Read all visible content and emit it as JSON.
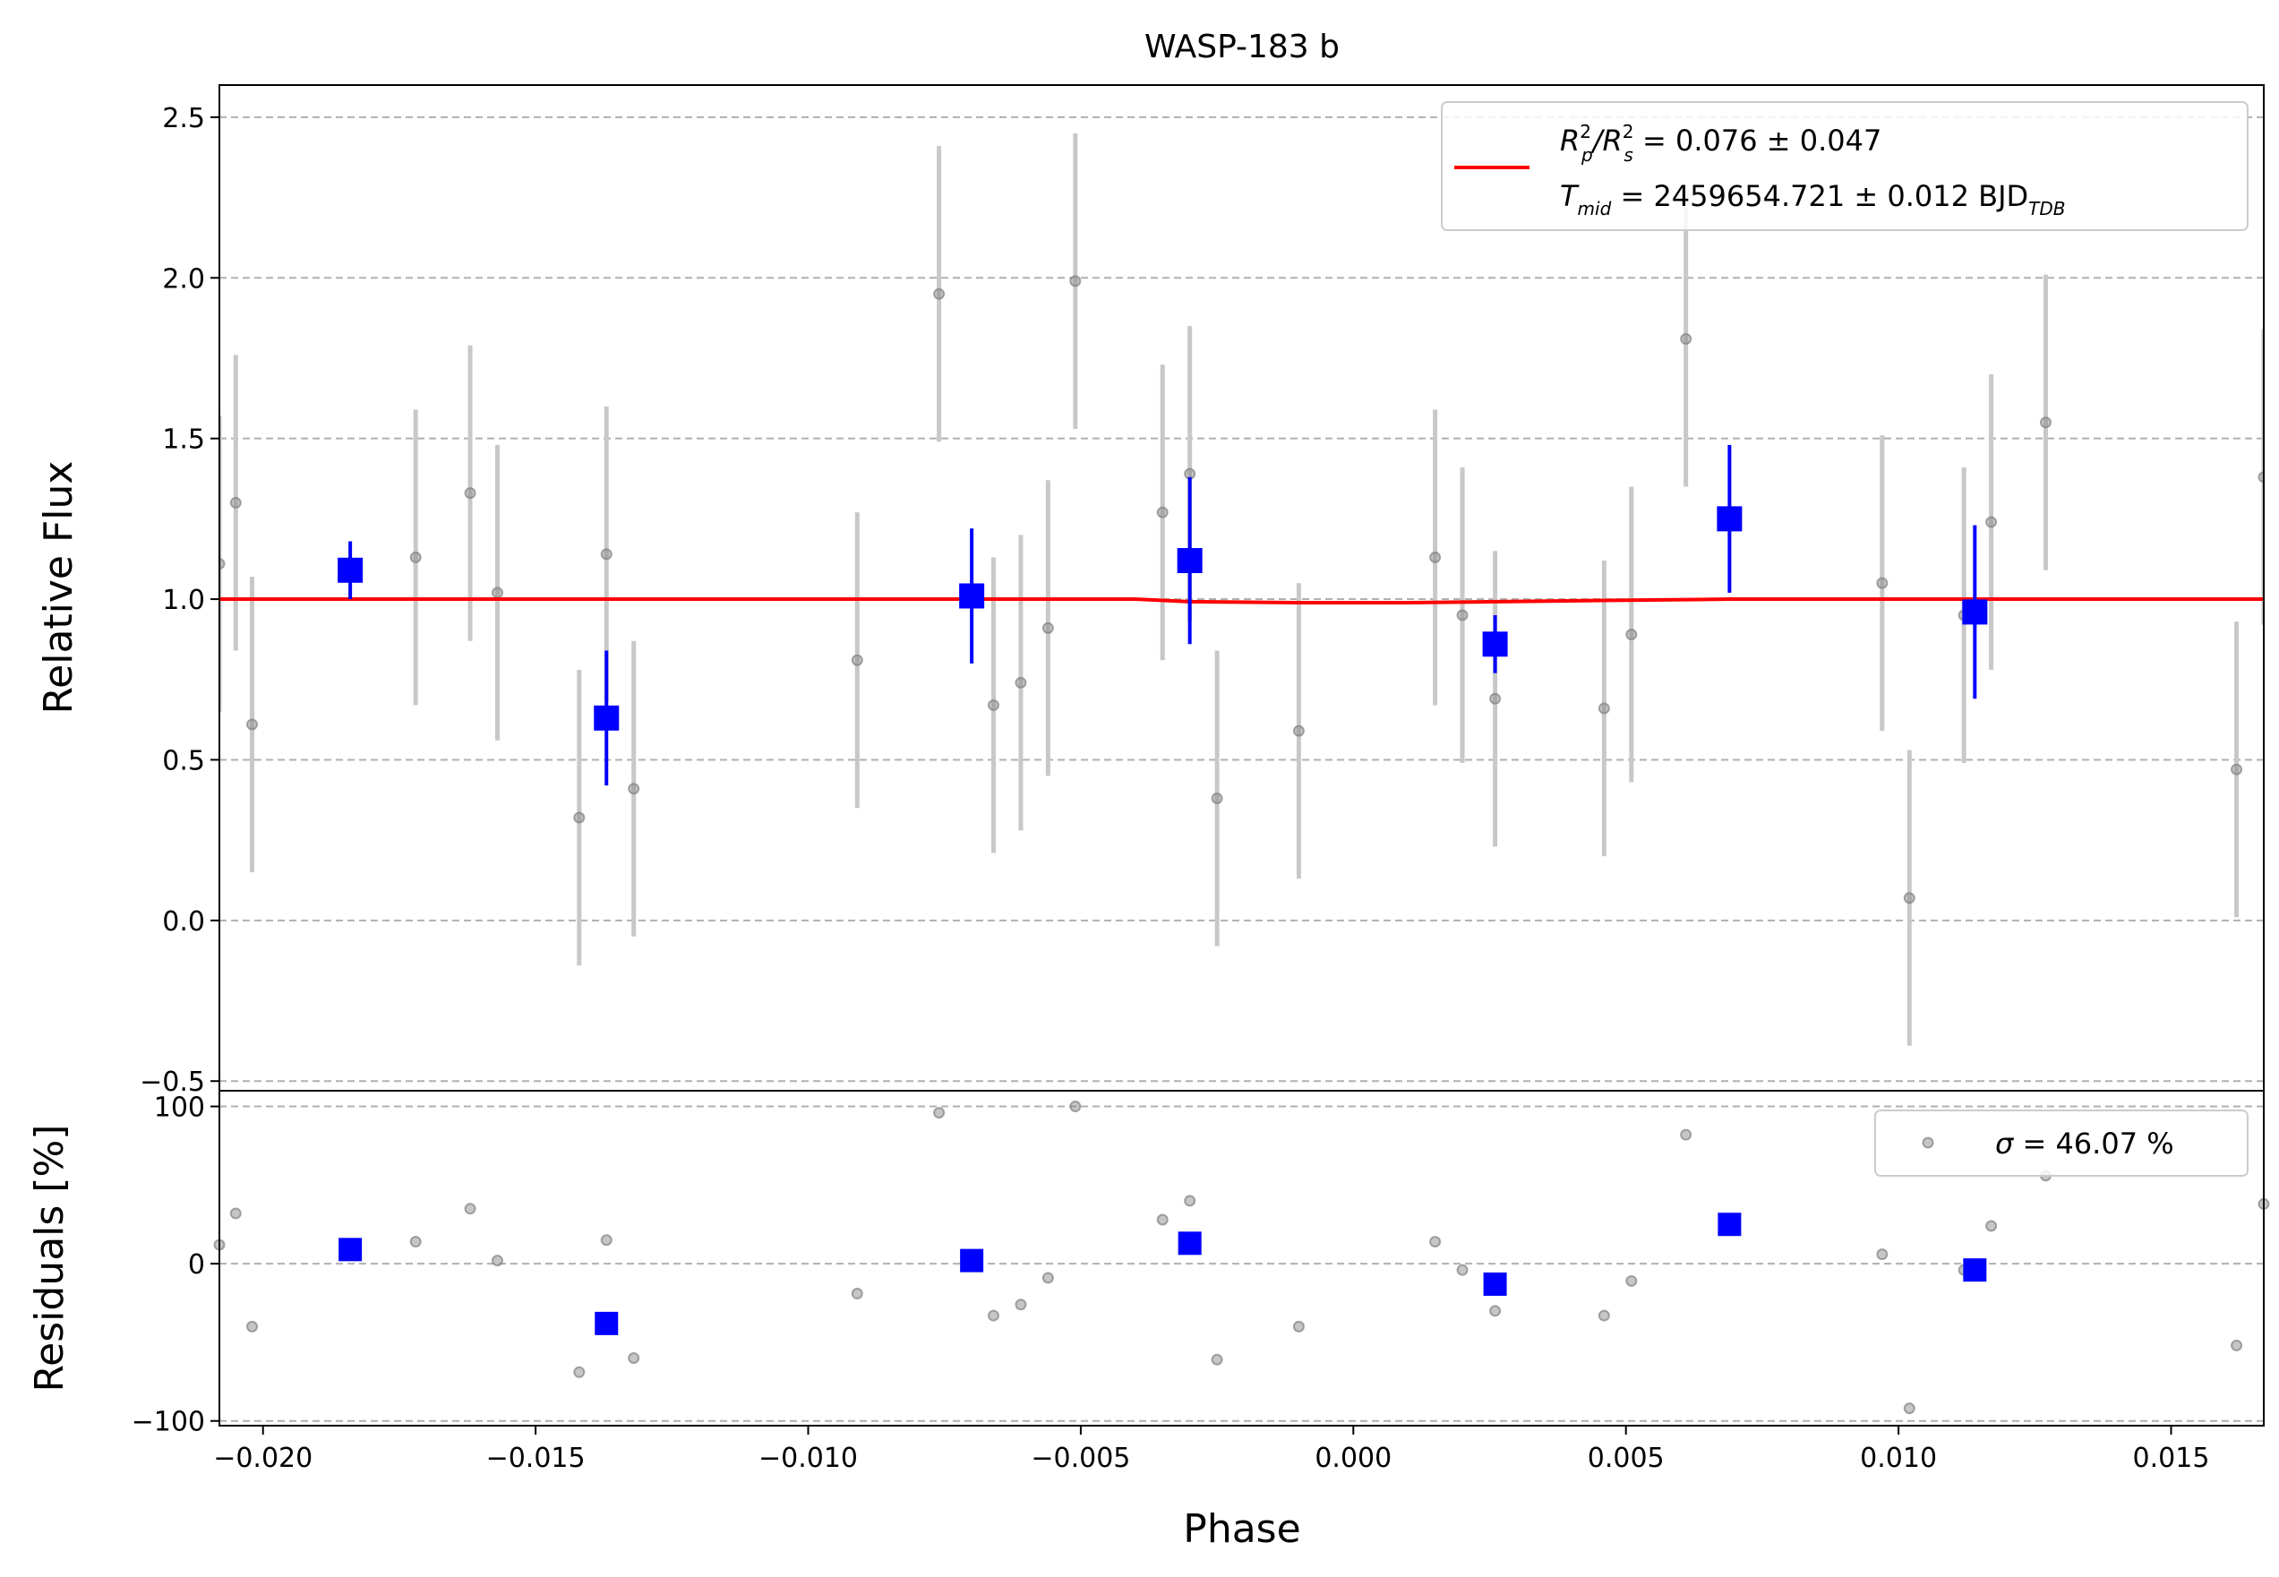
{
  "chart_data": [
    {
      "type": "scatter",
      "title": "WASP-183 b",
      "xlabel": "Phase",
      "ylabel": "Relative Flux",
      "xlim": [
        -0.0208,
        0.0167
      ],
      "ylim": [
        -0.53,
        2.6
      ],
      "yticks": [
        -0.5,
        0.0,
        0.5,
        1.0,
        1.5,
        2.0,
        2.5
      ],
      "ytick_labels": [
        "−0.5",
        "0.0",
        "0.5",
        "1.0",
        "1.5",
        "2.0",
        "2.5"
      ],
      "grid": "horizontal dashed",
      "legend_position": "top-right",
      "legend": {
        "line1_main": "R",
        "line1_sub1": "p",
        "line1_sup1": "2",
        "line1_slash": "/R",
        "line1_sub2": "s",
        "line1_sup2": "2",
        "line1_value": " = 0.076 ± 0.047",
        "line2_main": "T",
        "line2_sub": "mid",
        "line2_value": " = 2459654.721 ± 0.012 BJD",
        "line2_unit_sub": "TDB"
      },
      "series": [
        {
          "kind": "raw",
          "color": "#808080",
          "points": [
            {
              "x": -0.0208,
              "y": 1.11,
              "err": 0.46
            },
            {
              "x": -0.0205,
              "y": 1.3,
              "err": 0.46
            },
            {
              "x": -0.0202,
              "y": 0.61,
              "err": 0.46
            },
            {
              "x": -0.0172,
              "y": 1.13,
              "err": 0.46
            },
            {
              "x": -0.0162,
              "y": 1.33,
              "err": 0.46
            },
            {
              "x": -0.0157,
              "y": 1.02,
              "err": 0.46
            },
            {
              "x": -0.0142,
              "y": 0.32,
              "err": 0.46
            },
            {
              "x": -0.0137,
              "y": 1.14,
              "err": 0.46
            },
            {
              "x": -0.0132,
              "y": 0.41,
              "err": 0.46
            },
            {
              "x": -0.0091,
              "y": 0.81,
              "err": 0.46
            },
            {
              "x": -0.0076,
              "y": 1.95,
              "err": 0.46
            },
            {
              "x": -0.0066,
              "y": 0.67,
              "err": 0.46
            },
            {
              "x": -0.0061,
              "y": 0.74,
              "err": 0.46
            },
            {
              "x": -0.0056,
              "y": 0.91,
              "err": 0.46
            },
            {
              "x": -0.0051,
              "y": 1.99,
              "err": 0.46
            },
            {
              "x": -0.0035,
              "y": 1.27,
              "err": 0.46
            },
            {
              "x": -0.003,
              "y": 1.39,
              "err": 0.46
            },
            {
              "x": -0.0025,
              "y": 0.38,
              "err": 0.46
            },
            {
              "x": -0.001,
              "y": 0.59,
              "err": 0.46
            },
            {
              "x": 0.0015,
              "y": 1.13,
              "err": 0.46
            },
            {
              "x": 0.002,
              "y": 0.95,
              "err": 0.46
            },
            {
              "x": 0.0026,
              "y": 0.69,
              "err": 0.46
            },
            {
              "x": 0.0046,
              "y": 0.66,
              "err": 0.46
            },
            {
              "x": 0.0051,
              "y": 0.89,
              "err": 0.46
            },
            {
              "x": 0.0061,
              "y": 1.81,
              "err": 0.46
            },
            {
              "x": 0.0097,
              "y": 1.05,
              "err": 0.46
            },
            {
              "x": 0.0102,
              "y": 0.07,
              "err": 0.46
            },
            {
              "x": 0.0112,
              "y": 0.95,
              "err": 0.46
            },
            {
              "x": 0.0117,
              "y": 1.24,
              "err": 0.46
            },
            {
              "x": 0.0127,
              "y": 1.55,
              "err": 0.46
            },
            {
              "x": 0.0162,
              "y": 0.47,
              "err": 0.46
            },
            {
              "x": 0.0167,
              "y": 1.38,
              "err": 0.46
            }
          ]
        },
        {
          "kind": "binned",
          "color": "#0000ff",
          "points": [
            {
              "x": -0.0184,
              "y": 1.09,
              "err": 0.09
            },
            {
              "x": -0.0137,
              "y": 0.63,
              "err": 0.21
            },
            {
              "x": -0.007,
              "y": 1.01,
              "err": 0.21
            },
            {
              "x": -0.003,
              "y": 1.12,
              "err": 0.26
            },
            {
              "x": 0.0026,
              "y": 0.86,
              "err": 0.09
            },
            {
              "x": 0.0069,
              "y": 1.25,
              "err": 0.23
            },
            {
              "x": 0.0114,
              "y": 0.96,
              "err": 0.27
            }
          ]
        },
        {
          "kind": "model",
          "color": "#ff0000",
          "x": [
            -0.0208,
            -0.004,
            -0.003,
            -0.001,
            0.001,
            0.003,
            0.0069,
            0.0167
          ],
          "y": [
            1.0,
            1.0,
            0.992,
            0.989,
            0.989,
            0.993,
            1.0,
            1.0
          ]
        }
      ]
    },
    {
      "type": "scatter",
      "xlabel": "Phase",
      "ylabel": "Residuals [%]",
      "xlim": [
        -0.0208,
        0.0167
      ],
      "ylim": [
        -103,
        110
      ],
      "yticks": [
        -100,
        0,
        100
      ],
      "ytick_labels": [
        "−100",
        "0",
        "100"
      ],
      "xticks": [
        -0.02,
        -0.015,
        -0.01,
        -0.005,
        0.0,
        0.005,
        0.01,
        0.015
      ],
      "xtick_labels": [
        "−0.020",
        "−0.015",
        "−0.010",
        "−0.005",
        "0.000",
        "0.005",
        "0.010",
        "0.015"
      ],
      "grid": "horizontal dashed",
      "legend_position": "top-right",
      "legend": {
        "sigma_symbol": "σ",
        "sigma_value": " = 46.07 %"
      },
      "series": [
        {
          "kind": "raw",
          "color": "#808080",
          "points": [
            {
              "x": -0.0208,
              "y": 12
            },
            {
              "x": -0.0205,
              "y": 32
            },
            {
              "x": -0.0202,
              "y": -40
            },
            {
              "x": -0.0172,
              "y": 14
            },
            {
              "x": -0.0162,
              "y": 35
            },
            {
              "x": -0.0157,
              "y": 2
            },
            {
              "x": -0.0142,
              "y": -69
            },
            {
              "x": -0.0137,
              "y": 15
            },
            {
              "x": -0.0132,
              "y": -60
            },
            {
              "x": -0.0091,
              "y": -19
            },
            {
              "x": -0.0076,
              "y": 96
            },
            {
              "x": -0.0066,
              "y": -33
            },
            {
              "x": -0.0061,
              "y": -26
            },
            {
              "x": -0.0056,
              "y": -9
            },
            {
              "x": -0.0051,
              "y": 100
            },
            {
              "x": -0.0035,
              "y": 28
            },
            {
              "x": -0.003,
              "y": 40
            },
            {
              "x": -0.0025,
              "y": -61
            },
            {
              "x": -0.001,
              "y": -40
            },
            {
              "x": 0.0015,
              "y": 14
            },
            {
              "x": 0.002,
              "y": -4
            },
            {
              "x": 0.0026,
              "y": -30
            },
            {
              "x": 0.0046,
              "y": -33
            },
            {
              "x": 0.0051,
              "y": -11
            },
            {
              "x": 0.0061,
              "y": 82
            },
            {
              "x": 0.0097,
              "y": 6
            },
            {
              "x": 0.0102,
              "y": -92
            },
            {
              "x": 0.0112,
              "y": -4
            },
            {
              "x": 0.0117,
              "y": 24
            },
            {
              "x": 0.0127,
              "y": 56
            },
            {
              "x": 0.0162,
              "y": -52
            },
            {
              "x": 0.0167,
              "y": 38
            }
          ]
        },
        {
          "kind": "binned",
          "color": "#0000ff",
          "points": [
            {
              "x": -0.0184,
              "y": 9
            },
            {
              "x": -0.0137,
              "y": -38
            },
            {
              "x": -0.007,
              "y": 2
            },
            {
              "x": -0.003,
              "y": 13
            },
            {
              "x": 0.0026,
              "y": -13
            },
            {
              "x": 0.0069,
              "y": 25
            },
            {
              "x": 0.0114,
              "y": -4
            }
          ]
        }
      ]
    }
  ]
}
